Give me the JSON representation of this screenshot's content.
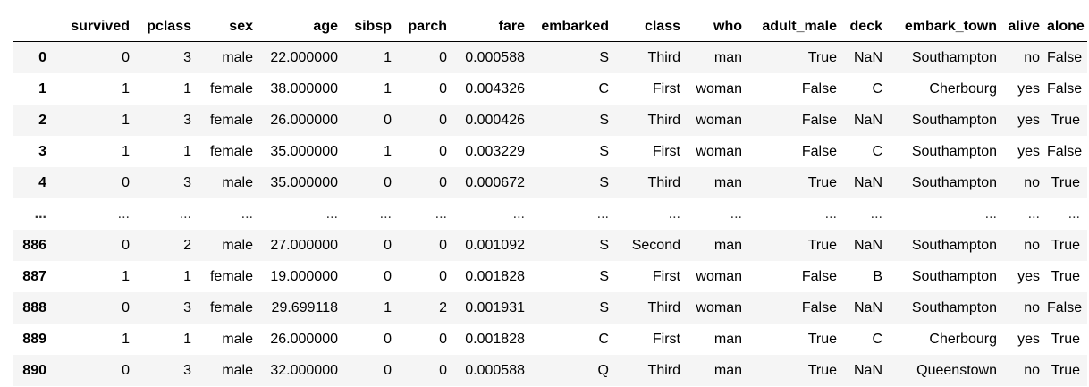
{
  "dataframe": {
    "index_header": "",
    "columns": [
      "survived",
      "pclass",
      "sex",
      "age",
      "sibsp",
      "parch",
      "fare",
      "embarked",
      "class",
      "who",
      "adult_male",
      "deck",
      "embark_town",
      "alive",
      "alone"
    ],
    "rows": [
      {
        "index": "0",
        "cells": [
          "0",
          "3",
          "male",
          "22.000000",
          "1",
          "0",
          "0.000588",
          "S",
          "Third",
          "man",
          "True",
          "NaN",
          "Southampton",
          "no",
          "False"
        ]
      },
      {
        "index": "1",
        "cells": [
          "1",
          "1",
          "female",
          "38.000000",
          "1",
          "0",
          "0.004326",
          "C",
          "First",
          "woman",
          "False",
          "C",
          "Cherbourg",
          "yes",
          "False"
        ]
      },
      {
        "index": "2",
        "cells": [
          "1",
          "3",
          "female",
          "26.000000",
          "0",
          "0",
          "0.000426",
          "S",
          "Third",
          "woman",
          "False",
          "NaN",
          "Southampton",
          "yes",
          "True"
        ]
      },
      {
        "index": "3",
        "cells": [
          "1",
          "1",
          "female",
          "35.000000",
          "1",
          "0",
          "0.003229",
          "S",
          "First",
          "woman",
          "False",
          "C",
          "Southampton",
          "yes",
          "False"
        ]
      },
      {
        "index": "4",
        "cells": [
          "0",
          "3",
          "male",
          "35.000000",
          "0",
          "0",
          "0.000672",
          "S",
          "Third",
          "man",
          "True",
          "NaN",
          "Southampton",
          "no",
          "True"
        ]
      },
      {
        "index": "...",
        "cells": [
          "...",
          "...",
          "...",
          "...",
          "...",
          "...",
          "...",
          "...",
          "...",
          "...",
          "...",
          "...",
          "...",
          "...",
          "..."
        ]
      },
      {
        "index": "886",
        "cells": [
          "0",
          "2",
          "male",
          "27.000000",
          "0",
          "0",
          "0.001092",
          "S",
          "Second",
          "man",
          "True",
          "NaN",
          "Southampton",
          "no",
          "True"
        ]
      },
      {
        "index": "887",
        "cells": [
          "1",
          "1",
          "female",
          "19.000000",
          "0",
          "0",
          "0.001828",
          "S",
          "First",
          "woman",
          "False",
          "B",
          "Southampton",
          "yes",
          "True"
        ]
      },
      {
        "index": "888",
        "cells": [
          "0",
          "3",
          "female",
          "29.699118",
          "1",
          "2",
          "0.001931",
          "S",
          "Third",
          "woman",
          "False",
          "NaN",
          "Southampton",
          "no",
          "False"
        ]
      },
      {
        "index": "889",
        "cells": [
          "1",
          "1",
          "male",
          "26.000000",
          "0",
          "0",
          "0.001828",
          "C",
          "First",
          "man",
          "True",
          "C",
          "Cherbourg",
          "yes",
          "True"
        ]
      },
      {
        "index": "890",
        "cells": [
          "0",
          "3",
          "male",
          "32.000000",
          "0",
          "0",
          "0.000588",
          "Q",
          "Third",
          "man",
          "True",
          "NaN",
          "Queenstown",
          "no",
          "True"
        ]
      }
    ]
  }
}
